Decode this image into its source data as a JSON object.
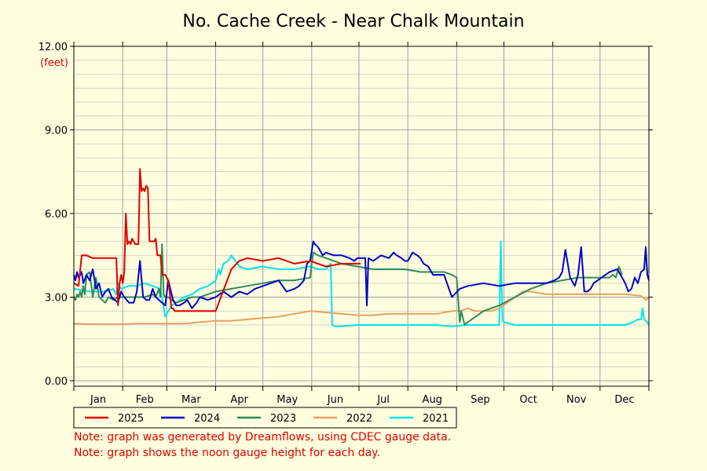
{
  "colors": {
    "background": "#ffffe0",
    "grid": "#b0b0b0",
    "axis": "#000000",
    "note": "#e00000"
  },
  "notes": [
    "Note: graph was generated by Dreamflows, using CDEC gauge data.",
    "Note: graph shows the noon gauge height for each day."
  ],
  "chart_data": {
    "type": "line",
    "title": "No. Cache Creek - Near Chalk Mountain",
    "ylabel": "(feet)",
    "xlabel": "",
    "ylim": [
      0,
      12
    ],
    "xlim": [
      0,
      365
    ],
    "y_ticks": [
      "0.00",
      "3.00",
      "6.00",
      "9.00",
      "12.00"
    ],
    "y_tick_values": [
      0,
      3,
      6,
      9,
      12
    ],
    "months": [
      "Jan",
      "Feb",
      "Mar",
      "Apr",
      "May",
      "Jun",
      "Jul",
      "Aug",
      "Sep",
      "Oct",
      "Nov",
      "Dec"
    ],
    "month_starts": [
      0,
      31,
      59,
      90,
      120,
      151,
      181,
      212,
      243,
      273,
      304,
      334
    ],
    "grid": true,
    "legend_position": "bottom-left",
    "series": [
      {
        "name": "2025",
        "color": "#e00000",
        "x": [
          0,
          3,
          5,
          8,
          12,
          20,
          27,
          28,
          29,
          30,
          31,
          32,
          33,
          34,
          35,
          36,
          37,
          39,
          41,
          42,
          43,
          44,
          45,
          46,
          47,
          48,
          49,
          50,
          51,
          52,
          53,
          54,
          55,
          56,
          58,
          60,
          62,
          63,
          64,
          66,
          68,
          70,
          75,
          80,
          85,
          90,
          100,
          105,
          110,
          120,
          130,
          140,
          150,
          160,
          170,
          178,
          182
        ],
        "y": [
          3.5,
          3.4,
          4.5,
          4.5,
          4.4,
          4.4,
          4.4,
          2.7,
          3.5,
          3.8,
          3.5,
          3.9,
          6.0,
          4.9,
          5.0,
          4.9,
          5.1,
          4.9,
          4.9,
          7.6,
          6.8,
          6.9,
          6.8,
          7.0,
          6.9,
          5.0,
          5.0,
          5.0,
          5.0,
          5.1,
          4.5,
          4.5,
          4.5,
          3.8,
          3.8,
          3.6,
          2.6,
          2.6,
          2.5,
          2.5,
          2.5,
          2.5,
          2.5,
          2.5,
          2.5,
          2.5,
          4.0,
          4.3,
          4.4,
          4.3,
          4.4,
          4.2,
          4.3,
          4.1,
          4.2,
          4.2,
          4.2
        ]
      },
      {
        "name": "2024",
        "color": "#0000cc",
        "x": [
          0,
          1,
          2,
          3,
          4,
          5,
          6,
          8,
          10,
          12,
          14,
          16,
          18,
          20,
          22,
          24,
          26,
          28,
          30,
          32,
          35,
          38,
          40,
          42,
          44,
          46,
          48,
          50,
          52,
          54,
          56,
          58,
          60,
          63,
          65,
          67,
          70,
          72,
          75,
          78,
          80,
          85,
          90,
          95,
          100,
          105,
          110,
          115,
          120,
          125,
          130,
          135,
          140,
          143,
          146,
          148,
          150,
          152,
          153,
          155,
          158,
          160,
          165,
          170,
          175,
          178,
          180,
          182,
          185,
          186,
          187,
          190,
          195,
          200,
          203,
          205,
          208,
          210,
          212,
          215,
          218,
          220,
          222,
          225,
          228,
          230,
          235,
          240,
          245,
          250,
          260,
          270,
          280,
          290,
          300,
          305,
          308,
          310,
          312,
          315,
          318,
          320,
          322,
          324,
          326,
          328,
          330,
          335,
          340,
          345,
          350,
          352,
          354,
          356,
          358,
          360,
          362,
          363,
          364,
          365
        ],
        "y": [
          3.8,
          3.6,
          3.9,
          3.7,
          3.8,
          3.9,
          3.5,
          3.8,
          3.6,
          4.0,
          3.3,
          3.5,
          3.0,
          3.2,
          3.3,
          3.0,
          2.9,
          2.8,
          3.2,
          3.0,
          2.8,
          2.8,
          3.2,
          4.3,
          3.0,
          2.9,
          2.9,
          3.3,
          3.0,
          2.9,
          2.8,
          2.7,
          3.6,
          2.9,
          2.7,
          2.7,
          2.8,
          2.9,
          2.6,
          2.8,
          3.0,
          2.9,
          3.0,
          3.2,
          3.0,
          3.2,
          3.1,
          3.3,
          3.4,
          3.5,
          3.6,
          3.2,
          3.3,
          3.4,
          3.6,
          4.2,
          4.3,
          5.0,
          4.9,
          4.8,
          4.5,
          4.6,
          4.5,
          4.5,
          4.4,
          4.3,
          4.4,
          4.4,
          4.4,
          2.7,
          4.4,
          4.3,
          4.5,
          4.4,
          4.6,
          4.5,
          4.4,
          4.3,
          4.3,
          4.6,
          4.5,
          4.4,
          4.2,
          4.1,
          3.8,
          3.8,
          3.8,
          3.0,
          3.3,
          3.4,
          3.5,
          3.4,
          3.5,
          3.5,
          3.5,
          3.6,
          3.7,
          3.9,
          4.7,
          3.7,
          3.4,
          3.8,
          4.8,
          3.2,
          3.2,
          3.3,
          3.5,
          3.7,
          3.9,
          4.0,
          3.5,
          3.2,
          3.3,
          3.7,
          3.5,
          3.9,
          4.0,
          4.8,
          3.8,
          3.6
        ]
      },
      {
        "name": "2023",
        "color": "#2e8b57",
        "x": [
          0,
          1,
          2,
          3,
          4,
          5,
          6,
          7,
          8,
          10,
          12,
          14,
          16,
          18,
          20,
          22,
          25,
          28,
          30,
          35,
          40,
          45,
          50,
          52,
          54,
          55,
          56,
          57,
          58,
          60,
          62,
          65,
          70,
          75,
          80,
          85,
          90,
          100,
          110,
          120,
          130,
          140,
          150,
          151,
          152,
          155,
          160,
          170,
          180,
          190,
          200,
          210,
          220,
          230,
          235,
          240,
          243,
          245,
          246,
          248,
          250,
          255,
          260,
          270,
          280,
          290,
          300,
          310,
          320,
          330,
          340,
          342,
          344,
          346,
          348
        ],
        "y": [
          3.0,
          2.9,
          3.1,
          3.0,
          3.2,
          3.0,
          3.4,
          3.1,
          3.8,
          3.9,
          3.0,
          3.7,
          3.0,
          2.9,
          2.8,
          3.0,
          2.9,
          3.0,
          3.0,
          3.0,
          3.0,
          3.0,
          3.1,
          3.0,
          3.3,
          3.0,
          4.9,
          3.1,
          3.0,
          3.0,
          2.9,
          2.8,
          2.9,
          3.0,
          3.0,
          3.1,
          3.2,
          3.3,
          3.4,
          3.5,
          3.6,
          3.6,
          3.7,
          4.2,
          4.6,
          4.5,
          4.4,
          4.2,
          4.1,
          4.0,
          4.0,
          4.0,
          3.9,
          3.9,
          3.9,
          3.8,
          3.7,
          2.1,
          2.5,
          2.0,
          2.1,
          2.3,
          2.5,
          2.7,
          3.0,
          3.3,
          3.5,
          3.6,
          3.7,
          3.7,
          3.7,
          3.8,
          3.7,
          4.1,
          3.8
        ]
      },
      {
        "name": "2022",
        "color": "#e8a060",
        "x": [
          0,
          10,
          20,
          30,
          40,
          50,
          60,
          70,
          80,
          90,
          100,
          110,
          120,
          130,
          140,
          150,
          160,
          170,
          180,
          190,
          200,
          210,
          220,
          230,
          240,
          245,
          250,
          255,
          260,
          265,
          270,
          275,
          280,
          285,
          290,
          295,
          300,
          310,
          320,
          330,
          340,
          350,
          360,
          363,
          365
        ],
        "y": [
          2.05,
          2.03,
          2.03,
          2.03,
          2.05,
          2.05,
          2.05,
          2.05,
          2.1,
          2.15,
          2.15,
          2.2,
          2.25,
          2.3,
          2.4,
          2.5,
          2.45,
          2.4,
          2.35,
          2.35,
          2.4,
          2.4,
          2.4,
          2.4,
          2.5,
          2.5,
          2.6,
          2.5,
          2.5,
          2.5,
          2.6,
          2.8,
          3.0,
          3.2,
          3.2,
          3.15,
          3.1,
          3.1,
          3.1,
          3.1,
          3.1,
          3.1,
          3.05,
          2.9,
          3.0
        ]
      },
      {
        "name": "2021",
        "color": "#00e5ee",
        "x": [
          0,
          10,
          20,
          25,
          27,
          28,
          30,
          35,
          40,
          45,
          50,
          55,
          58,
          60,
          62,
          65,
          70,
          75,
          80,
          85,
          88,
          90,
          92,
          93,
          95,
          98,
          100,
          105,
          110,
          120,
          130,
          140,
          150,
          155,
          160,
          163,
          164,
          166,
          170,
          180,
          190,
          200,
          210,
          220,
          230,
          240,
          250,
          260,
          265,
          270,
          271,
          272,
          273,
          280,
          290,
          300,
          310,
          320,
          330,
          340,
          350,
          355,
          358,
          360,
          361,
          362,
          364,
          365
        ],
        "y": [
          3.3,
          3.2,
          3.2,
          3.3,
          3.1,
          3.5,
          3.3,
          3.4,
          3.4,
          3.5,
          3.4,
          3.3,
          2.3,
          2.5,
          2.7,
          2.8,
          3.0,
          3.1,
          3.3,
          3.4,
          3.5,
          3.6,
          4.0,
          3.8,
          4.2,
          4.3,
          4.5,
          4.1,
          4.0,
          4.1,
          4.0,
          4.0,
          4.1,
          4.0,
          4.0,
          4.2,
          2.0,
          1.95,
          1.95,
          2.0,
          2.0,
          2.0,
          2.0,
          2.0,
          2.0,
          1.95,
          2.0,
          2.0,
          2.0,
          2.0,
          5.0,
          2.2,
          2.1,
          2.0,
          2.0,
          2.0,
          2.0,
          2.0,
          2.0,
          2.0,
          2.0,
          2.1,
          2.2,
          2.2,
          2.6,
          2.2,
          2.1,
          2.0
        ]
      }
    ]
  }
}
